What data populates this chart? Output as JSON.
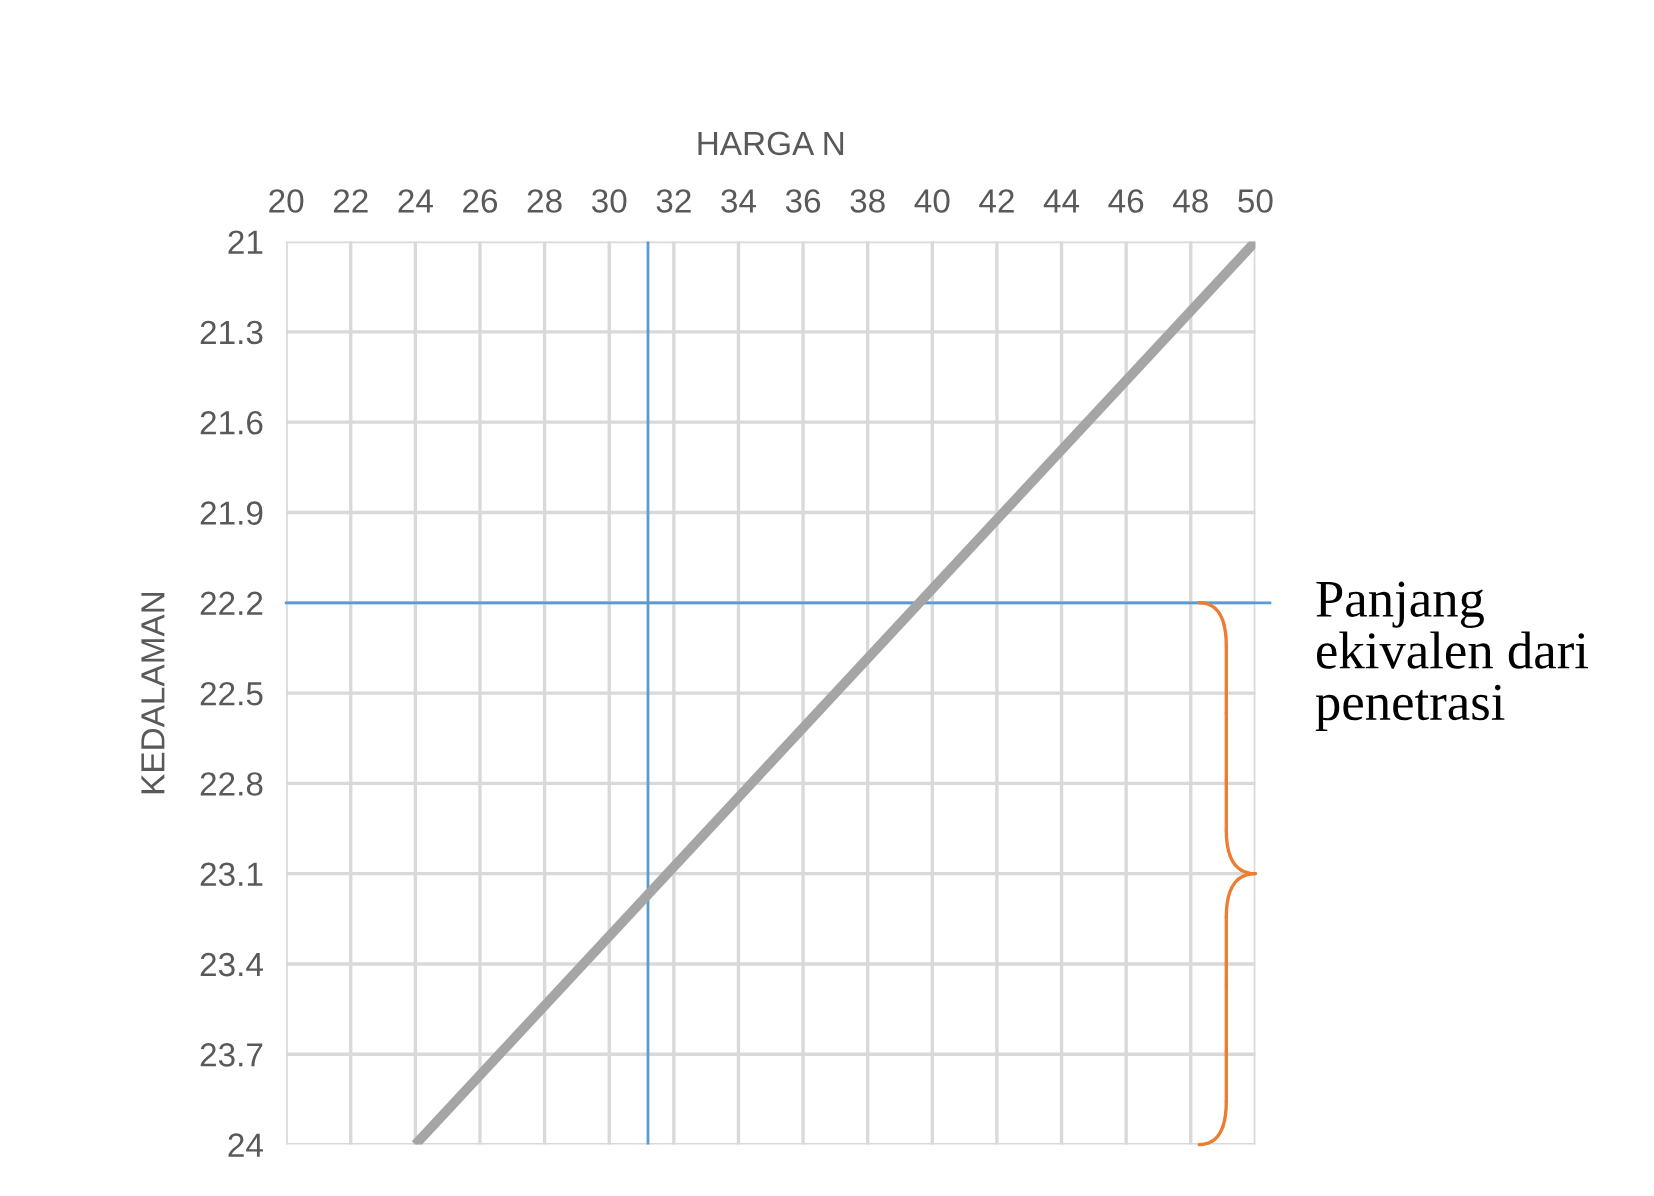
{
  "chart_data": {
    "type": "line",
    "xlabel": "HARGA N",
    "ylabel": "KEDALAMAN",
    "series": [
      {
        "color": "#a5a5a5",
        "x": [
          24,
          50
        ],
        "values": [
          24,
          21
        ]
      }
    ],
    "xlim": [
      20,
      50
    ],
    "xticks": [
      20,
      22,
      24,
      26,
      28,
      30,
      32,
      34,
      36,
      38,
      40,
      42,
      44,
      46,
      48,
      50
    ],
    "ylim": [
      24,
      21
    ],
    "yticks": [
      21,
      21.3,
      21.6,
      21.9,
      22.2,
      22.5,
      22.8,
      23.1,
      23.4,
      23.7,
      24
    ],
    "ref_lines": [
      {
        "axis": "x",
        "value": 31.2,
        "color": "#5b9bd5"
      },
      {
        "axis": "y",
        "value": 22.2,
        "color": "#5b9bd5"
      }
    ],
    "annotations": [
      {
        "text": "Panjang ekivalen dari penetrasi",
        "x": 50,
        "y": 22.2
      }
    ],
    "grid": true,
    "legend": false,
    "marker": "none",
    "line_style": "solid"
  }
}
